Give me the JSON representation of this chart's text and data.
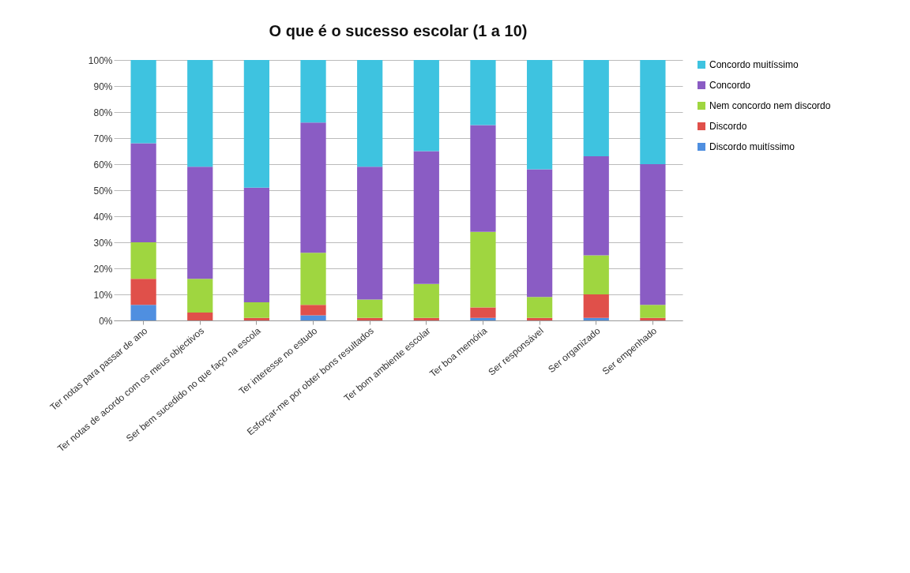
{
  "chart_data": {
    "type": "bar",
    "title": "O que é o sucesso escolar (1 a 10)",
    "stacked": true,
    "legend": "right",
    "grid": "y",
    "categories": [
      "Ter notas para passar de ano",
      "Ter notas de acordo com os meus objectivos",
      "Ser bem sucedido no que faço na escola",
      "Ter interesse no estudo",
      "Esforçar-me por obter bons resultados",
      "Ter bom ambiente escolar",
      "Ter boa memória",
      "Ser responsável",
      "Ser organizado",
      "Ser empenhado"
    ],
    "ylim": [
      0,
      100
    ],
    "yticks": [
      {
        "value": 0,
        "label": "0%"
      },
      {
        "value": 10,
        "label": "10%"
      },
      {
        "value": 20,
        "label": "20%"
      },
      {
        "value": 30,
        "label": "30%"
      },
      {
        "value": 40,
        "label": "40%"
      },
      {
        "value": 50,
        "label": "50%"
      },
      {
        "value": 60,
        "label": "60%"
      },
      {
        "value": 70,
        "label": "70%"
      },
      {
        "value": 80,
        "label": "80%"
      },
      {
        "value": 90,
        "label": "90%"
      },
      {
        "value": 100,
        "label": "100%"
      }
    ],
    "series": [
      {
        "name": "Discordo muitíssimo",
        "color": "#4f8fe0",
        "values": [
          6,
          0,
          0,
          2,
          0,
          0,
          1,
          0,
          1,
          0
        ]
      },
      {
        "name": "Discordo",
        "color": "#e0504a",
        "values": [
          10,
          3,
          1,
          4,
          1,
          1,
          4,
          1,
          9,
          1
        ]
      },
      {
        "name": "Nem concordo nem discordo",
        "color": "#9fd640",
        "values": [
          14,
          13,
          6,
          20,
          7,
          13,
          29,
          8,
          15,
          5
        ]
      },
      {
        "name": "Concordo",
        "color": "#8a5cc4",
        "values": [
          38,
          43,
          44,
          50,
          51,
          51,
          41,
          49,
          38,
          54
        ]
      },
      {
        "name": "Concordo muitíssimo",
        "color": "#3ec3e0",
        "values": [
          32,
          41,
          49,
          24,
          41,
          35,
          25,
          42,
          37,
          40
        ]
      }
    ]
  }
}
